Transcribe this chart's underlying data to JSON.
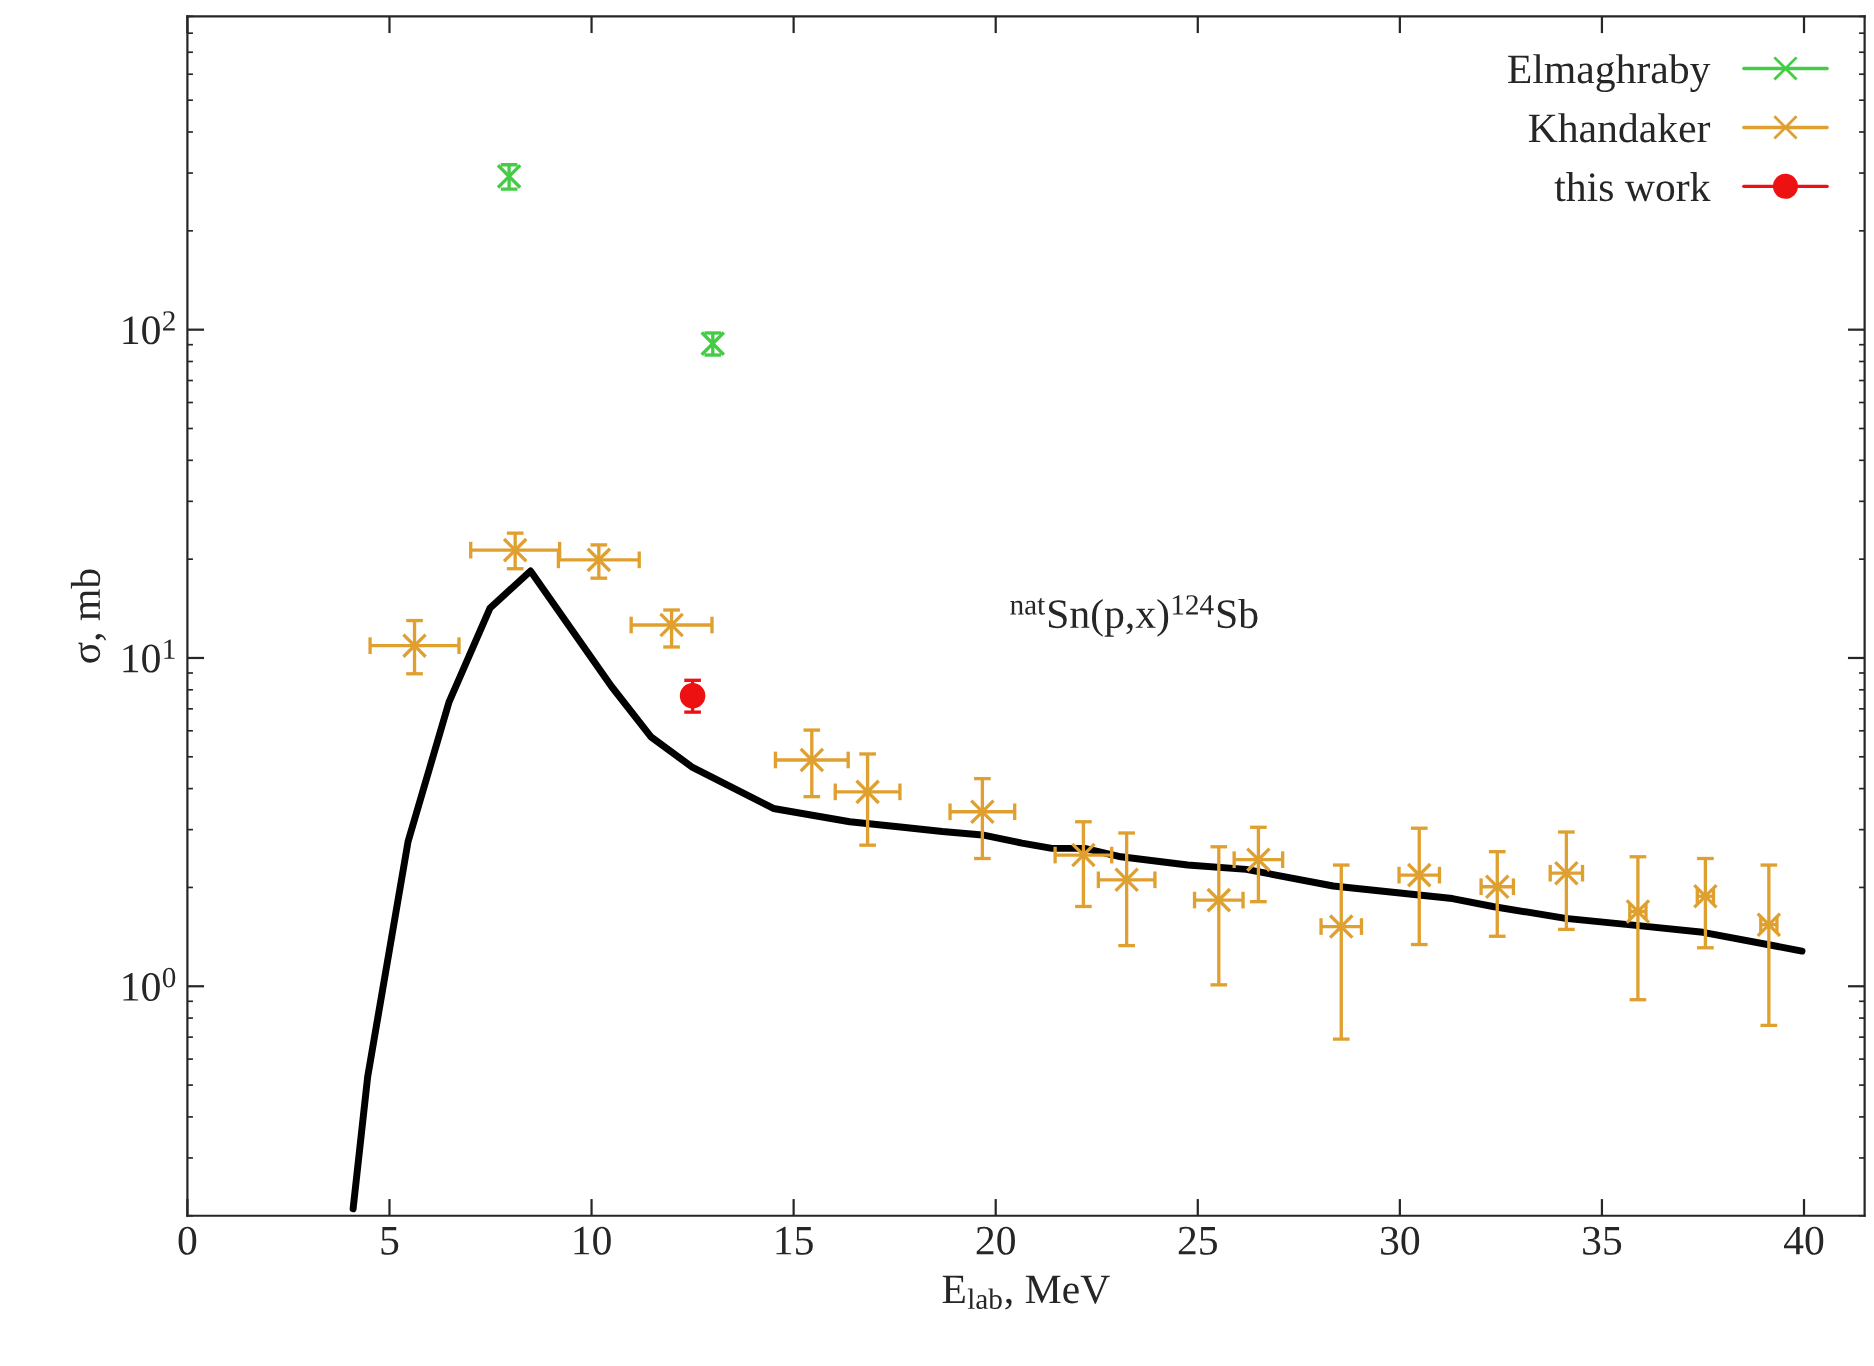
{
  "chart_data": {
    "type": "scatter",
    "xlabel": "E$_{lab}$, MeV",
    "ylabel": "σ, mb",
    "annotations": [
      "$^{nat}$Sn(p,x)$^{124}$Sb"
    ],
    "log": "y",
    "xlim": [
      0,
      41.5
    ],
    "xticks": [
      0,
      5,
      10,
      15,
      20,
      25,
      30,
      35,
      40
    ],
    "ylim": [
      0.2,
      900
    ],
    "yticks": [
      {
        "value": 1,
        "label": "10$^{0}$"
      },
      {
        "value": 10,
        "label": "10$^{1}$"
      },
      {
        "value": 100,
        "label": "10$^{2}$"
      }
    ],
    "grid": false,
    "legend": "top right",
    "series": [
      {
        "name": "Elmaghraby",
        "color": "#44cc44",
        "marker": "cross",
        "x": [
          7.96,
          13.0
        ],
        "values": [
          293,
          90.7
        ],
        "errors": [
          25,
          7
        ]
      },
      {
        "name": "Khandaker",
        "color": "#e0a030",
        "marker": "cross",
        "x": [
          5.62,
          8.11,
          10.18,
          11.98,
          15.45,
          16.83,
          19.67,
          22.17,
          23.24,
          25.52,
          26.5,
          28.55,
          30.48,
          32.41,
          34.12,
          35.89,
          37.56,
          39.13
        ],
        "values": [
          10.9,
          21.3,
          19.9,
          12.6,
          4.89,
          3.91,
          3.4,
          2.51,
          2.11,
          1.83,
          2.43,
          1.52,
          2.18,
          2.01,
          2.21,
          1.69,
          1.88,
          1.54
        ],
        "errors": [
          [
            8.95,
            13.0
          ],
          [
            18.7,
            24.0
          ],
          [
            17.5,
            22.1
          ],
          [
            10.8,
            14.0
          ],
          [
            3.78,
            6.03
          ],
          [
            2.69,
            5.1
          ],
          [
            2.45,
            4.29
          ],
          [
            1.75,
            3.17
          ],
          [
            1.33,
            2.93
          ],
          [
            1.01,
            2.66
          ],
          [
            1.81,
            3.05
          ],
          [
            0.69,
            2.34
          ],
          [
            1.34,
            3.03
          ],
          [
            1.42,
            2.57
          ],
          [
            1.49,
            2.95
          ],
          [
            0.91,
            2.48
          ],
          [
            1.31,
            2.45
          ],
          [
            0.76,
            2.34
          ]
        ],
        "xerrors": [
          1.1,
          1.1,
          1.0,
          1.0,
          0.9,
          0.8,
          0.8,
          0.7,
          0.7,
          0.6,
          0.6,
          0.5,
          0.5,
          0.4,
          0.4,
          0.2,
          0.2,
          0.2
        ]
      },
      {
        "type": "line",
        "color": "#000000",
        "marker": "none",
        "line_style": "solid",
        "x": [
          4.1,
          4.46,
          5.46,
          6.47,
          7.49,
          8.49,
          10.49,
          11.47,
          12.5,
          14.5,
          16.39,
          17.7,
          18.68,
          19.67,
          20.65,
          21.39,
          22.2,
          23.1,
          24.75,
          26.2,
          28.35,
          31.3,
          32.3,
          34.1,
          35.9,
          37.5,
          39.95
        ],
        "values": [
          0.21,
          0.53,
          2.76,
          7.32,
          14.2,
          18.4,
          8.2,
          5.75,
          4.64,
          3.48,
          3.17,
          3.05,
          2.96,
          2.89,
          2.73,
          2.63,
          2.63,
          2.48,
          2.34,
          2.27,
          2.02,
          1.85,
          1.75,
          1.61,
          1.53,
          1.46,
          1.28
        ]
      },
      {
        "name": "this work",
        "color": "#ee1111",
        "marker": "circle",
        "x": [
          12.5
        ],
        "values": [
          7.67
        ],
        "errors": [
          [
            6.84,
            8.55
          ]
        ]
      }
    ]
  }
}
